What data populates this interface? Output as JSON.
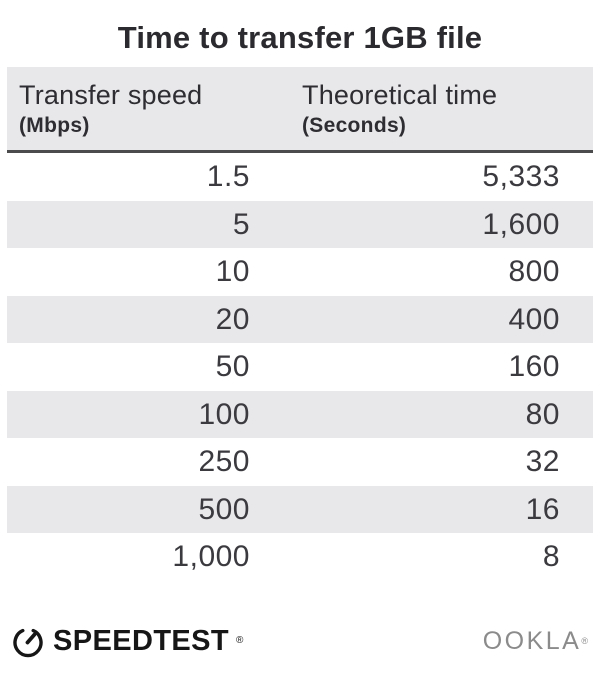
{
  "title": "Time to transfer 1GB file",
  "table": {
    "columns": [
      {
        "label": "Transfer speed",
        "unit": "(Mbps)"
      },
      {
        "label": "Theoretical time",
        "unit": "(Seconds)"
      }
    ],
    "rows": [
      {
        "speed": "1.5",
        "time": "5,333"
      },
      {
        "speed": "5",
        "time": "1,600"
      },
      {
        "speed": "10",
        "time": "800"
      },
      {
        "speed": "20",
        "time": "400"
      },
      {
        "speed": "50",
        "time": "160"
      },
      {
        "speed": "100",
        "time": "80"
      },
      {
        "speed": "250",
        "time": "32"
      },
      {
        "speed": "500",
        "time": "16"
      },
      {
        "speed": "1,000",
        "time": "8"
      }
    ]
  },
  "chart_data": {
    "type": "table",
    "title": "Time to transfer 1GB file",
    "columns": [
      "Transfer speed (Mbps)",
      "Theoretical time (Seconds)"
    ],
    "rows": [
      [
        1.5,
        5333
      ],
      [
        5,
        1600
      ],
      [
        10,
        800
      ],
      [
        20,
        400
      ],
      [
        50,
        160
      ],
      [
        100,
        80
      ],
      [
        250,
        32
      ],
      [
        500,
        16
      ],
      [
        1000,
        8
      ]
    ]
  },
  "footer": {
    "speedtest_label": "SPEEDTEST",
    "speedtest_registered": "®",
    "ookla_label": "OOKLA",
    "ookla_registered": "®"
  },
  "colors": {
    "row_alt_bg": "#e8e7ea",
    "header_bg": "#e8e7ea",
    "header_border": "#4b4b4d",
    "title_text": "#2b2b2f",
    "number_text": "#3b3a3f",
    "speedtest_text": "#161616",
    "ookla_text": "#8b8b8b"
  }
}
